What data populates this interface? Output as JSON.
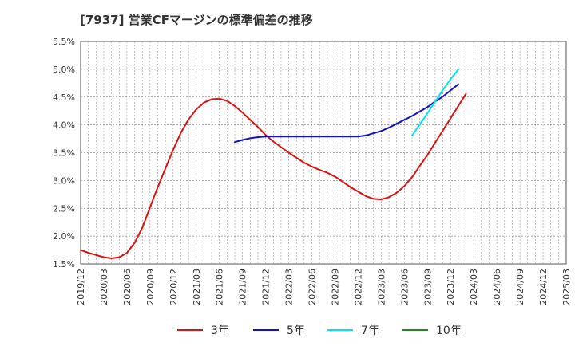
{
  "chart_data": {
    "type": "line",
    "title": "[7937]  営業CFマージンの標準偏差の推移",
    "xlabel": "",
    "ylabel": "",
    "ylim": [
      1.5,
      5.5
    ],
    "yticks": [
      "1.5%",
      "2.0%",
      "2.5%",
      "3.0%",
      "3.5%",
      "4.0%",
      "4.5%",
      "5.0%",
      "5.5%"
    ],
    "xlim": [
      "2019/12",
      "2025/03"
    ],
    "xticks": [
      "2019/12",
      "2020/03",
      "2020/06",
      "2020/09",
      "2020/12",
      "2021/03",
      "2021/06",
      "2021/09",
      "2021/12",
      "2022/03",
      "2022/06",
      "2022/09",
      "2022/12",
      "2023/03",
      "2023/06",
      "2023/09",
      "2023/12",
      "2024/03",
      "2024/06",
      "2024/09",
      "2024/12",
      "2025/03"
    ],
    "grid": true,
    "legend_position": "bottom",
    "series": [
      {
        "name": "3年",
        "color": "#dd1111",
        "points": [
          [
            "2019/12",
            1.75
          ],
          [
            "2020/01",
            1.7
          ],
          [
            "2020/02",
            1.66
          ],
          [
            "2020/03",
            1.62
          ],
          [
            "2020/04",
            1.6
          ],
          [
            "2020/05",
            1.62
          ],
          [
            "2020/06",
            1.7
          ],
          [
            "2020/07",
            1.88
          ],
          [
            "2020/08",
            2.15
          ],
          [
            "2020/09",
            2.52
          ],
          [
            "2020/10",
            2.88
          ],
          [
            "2020/11",
            3.22
          ],
          [
            "2020/12",
            3.55
          ],
          [
            "2021/01",
            3.86
          ],
          [
            "2021/02",
            4.1
          ],
          [
            "2021/03",
            4.28
          ],
          [
            "2021/04",
            4.4
          ],
          [
            "2021/05",
            4.46
          ],
          [
            "2021/06",
            4.47
          ],
          [
            "2021/07",
            4.43
          ],
          [
            "2021/08",
            4.34
          ],
          [
            "2021/09",
            4.22
          ],
          [
            "2021/10",
            4.09
          ],
          [
            "2021/11",
            3.96
          ],
          [
            "2021/12",
            3.82
          ],
          [
            "2022/01",
            3.7
          ],
          [
            "2022/02",
            3.6
          ],
          [
            "2022/03",
            3.5
          ],
          [
            "2022/04",
            3.41
          ],
          [
            "2022/05",
            3.32
          ],
          [
            "2022/06",
            3.25
          ],
          [
            "2022/07",
            3.19
          ],
          [
            "2022/08",
            3.14
          ],
          [
            "2022/09",
            3.07
          ],
          [
            "2022/10",
            2.98
          ],
          [
            "2022/11",
            2.88
          ],
          [
            "2022/12",
            2.8
          ],
          [
            "2023/01",
            2.72
          ],
          [
            "2023/02",
            2.67
          ],
          [
            "2023/03",
            2.66
          ],
          [
            "2023/04",
            2.7
          ],
          [
            "2023/05",
            2.78
          ],
          [
            "2023/06",
            2.9
          ],
          [
            "2023/07",
            3.06
          ],
          [
            "2023/08",
            3.26
          ],
          [
            "2023/09",
            3.46
          ],
          [
            "2023/10",
            3.68
          ],
          [
            "2023/11",
            3.9
          ],
          [
            "2023/12",
            4.12
          ],
          [
            "2024/01",
            4.34
          ],
          [
            "2024/02",
            4.56
          ]
        ]
      },
      {
        "name": "5年",
        "color": "#1111cc",
        "points": [
          [
            "2021/08",
            3.69
          ],
          [
            "2021/09",
            3.73
          ],
          [
            "2021/10",
            3.76
          ],
          [
            "2021/11",
            3.78
          ],
          [
            "2021/12",
            3.79
          ],
          [
            "2022/03",
            3.79
          ],
          [
            "2022/06",
            3.79
          ],
          [
            "2022/09",
            3.79
          ],
          [
            "2022/12",
            3.79
          ],
          [
            "2023/01",
            3.81
          ],
          [
            "2023/02",
            3.85
          ],
          [
            "2023/03",
            3.89
          ],
          [
            "2023/04",
            3.95
          ],
          [
            "2023/05",
            4.02
          ],
          [
            "2023/06",
            4.09
          ],
          [
            "2023/07",
            4.16
          ],
          [
            "2023/08",
            4.24
          ],
          [
            "2023/09",
            4.32
          ],
          [
            "2023/10",
            4.42
          ],
          [
            "2023/11",
            4.51
          ],
          [
            "2023/12",
            4.62
          ],
          [
            "2024/01",
            4.73
          ]
        ]
      },
      {
        "name": "7年",
        "color": "#00e5ee",
        "points": [
          [
            "2023/07",
            3.81
          ],
          [
            "2023/08",
            4.01
          ],
          [
            "2023/09",
            4.21
          ],
          [
            "2023/10",
            4.42
          ],
          [
            "2023/11",
            4.63
          ],
          [
            "2023/12",
            4.82
          ],
          [
            "2024/01",
            5.0
          ]
        ]
      },
      {
        "name": "10年",
        "color": "#228822",
        "points": []
      }
    ]
  }
}
